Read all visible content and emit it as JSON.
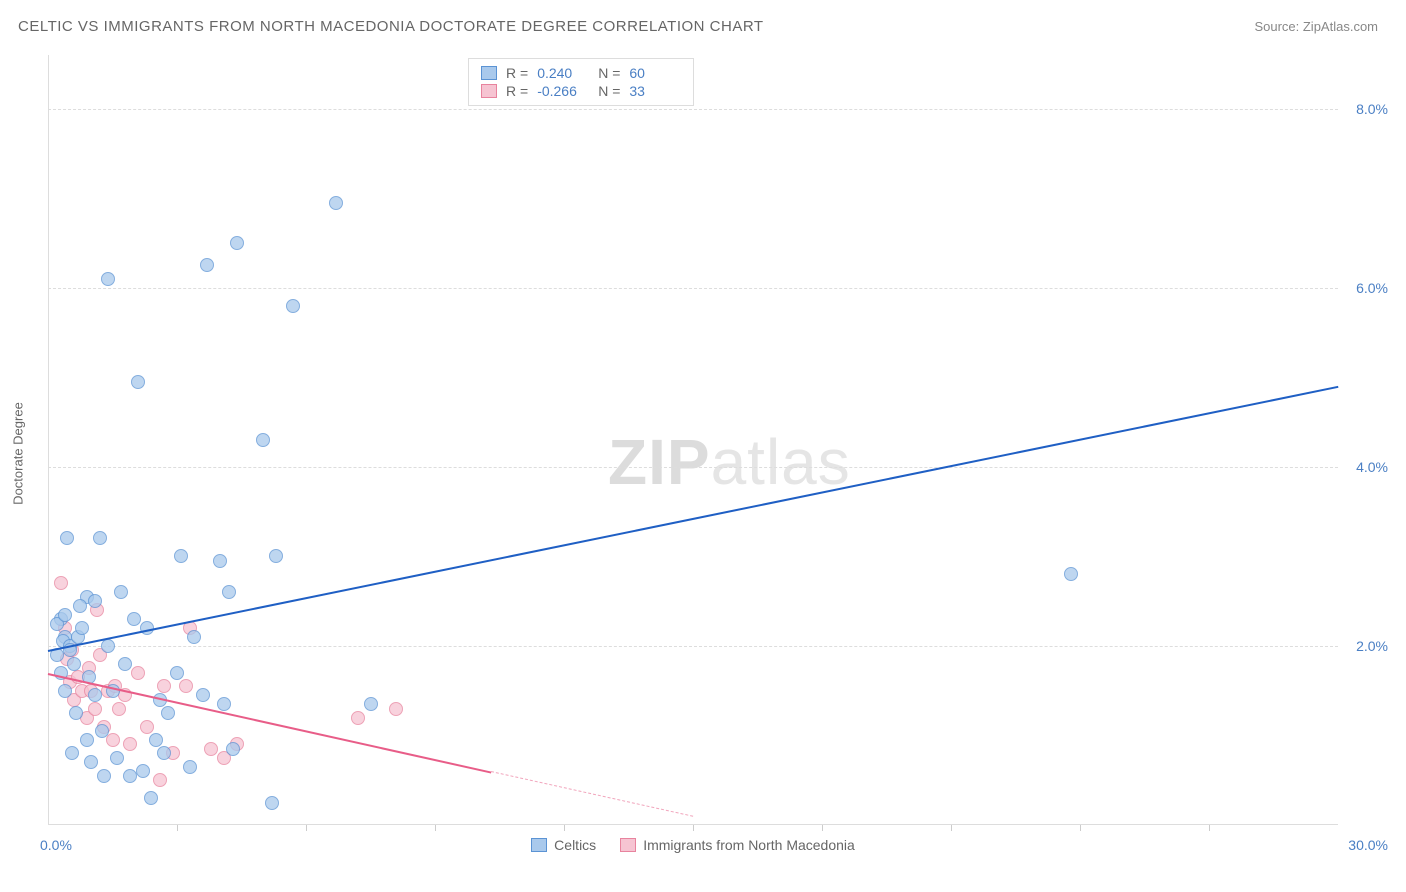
{
  "title": "CELTIC VS IMMIGRANTS FROM NORTH MACEDONIA DOCTORATE DEGREE CORRELATION CHART",
  "source_label": "Source: ZipAtlas.com",
  "y_axis_label": "Doctorate Degree",
  "watermark": {
    "zip": "ZIP",
    "atlas": "atlas"
  },
  "chart": {
    "type": "scatter",
    "xlim": [
      0,
      30
    ],
    "ylim": [
      0,
      8.6
    ],
    "x_min_label": "0.0%",
    "x_max_label": "30.0%",
    "y_ticks": [
      {
        "v": 2.0,
        "label": "2.0%"
      },
      {
        "v": 4.0,
        "label": "4.0%"
      },
      {
        "v": 6.0,
        "label": "6.0%"
      },
      {
        "v": 8.0,
        "label": "8.0%"
      }
    ],
    "x_tick_positions": [
      3,
      6,
      9,
      12,
      15,
      18,
      21,
      24,
      27
    ],
    "grid_color": "#dddddd",
    "background_color": "#ffffff",
    "series": {
      "blue": {
        "label": "Celtics",
        "marker_fill": "#a9c9ec",
        "marker_stroke": "#5b93d4",
        "line_color": "#1f5fc4",
        "R": "0.240",
        "N": "60",
        "trend": {
          "x1": 0,
          "y1": 1.95,
          "x2": 30,
          "y2": 4.9
        },
        "points": [
          [
            0.2,
            1.9
          ],
          [
            0.3,
            2.3
          ],
          [
            0.4,
            2.1
          ],
          [
            0.35,
            2.05
          ],
          [
            0.5,
            2.0
          ],
          [
            0.3,
            1.7
          ],
          [
            0.4,
            1.5
          ],
          [
            0.6,
            1.8
          ],
          [
            0.7,
            2.1
          ],
          [
            0.8,
            2.2
          ],
          [
            0.9,
            2.55
          ],
          [
            0.2,
            2.25
          ],
          [
            0.4,
            2.35
          ],
          [
            0.5,
            1.95
          ],
          [
            1.1,
            2.5
          ],
          [
            1.4,
            2.0
          ],
          [
            1.7,
            2.6
          ],
          [
            2.0,
            2.3
          ],
          [
            2.3,
            2.2
          ],
          [
            2.6,
            1.4
          ],
          [
            1.2,
            3.2
          ],
          [
            1.4,
            6.1
          ],
          [
            2.1,
            4.95
          ],
          [
            2.7,
            0.8
          ],
          [
            3.4,
            2.1
          ],
          [
            3.7,
            6.25
          ],
          [
            4.0,
            2.95
          ],
          [
            4.2,
            2.6
          ],
          [
            4.4,
            6.5
          ],
          [
            5.0,
            4.3
          ],
          [
            5.3,
            3.0
          ],
          [
            5.7,
            5.8
          ],
          [
            6.7,
            6.95
          ],
          [
            3.1,
            3.0
          ],
          [
            3.3,
            0.65
          ],
          [
            4.1,
            1.35
          ],
          [
            5.2,
            0.25
          ],
          [
            1.9,
            0.55
          ],
          [
            2.2,
            0.6
          ],
          [
            2.5,
            0.95
          ],
          [
            2.8,
            1.25
          ],
          [
            0.9,
            0.95
          ],
          [
            1.0,
            0.7
          ],
          [
            1.3,
            0.55
          ],
          [
            1.5,
            1.5
          ],
          [
            1.6,
            0.75
          ],
          [
            1.8,
            1.8
          ],
          [
            3.0,
            1.7
          ],
          [
            1.25,
            1.05
          ],
          [
            0.55,
            0.8
          ],
          [
            0.65,
            1.25
          ],
          [
            3.6,
            1.45
          ],
          [
            1.1,
            1.45
          ],
          [
            4.3,
            0.85
          ],
          [
            0.45,
            3.2
          ],
          [
            0.95,
            1.65
          ],
          [
            2.4,
            0.3
          ],
          [
            7.5,
            1.35
          ],
          [
            23.8,
            2.8
          ],
          [
            0.75,
            2.45
          ]
        ]
      },
      "pink": {
        "label": "Immigrants from North Macedonia",
        "marker_fill": "#f6c4d2",
        "marker_stroke": "#e8839e",
        "line_color": "#e85d88",
        "R": "-0.266",
        "N": "33",
        "trend_solid": {
          "x1": 0,
          "y1": 1.7,
          "x2": 10.3,
          "y2": 0.6
        },
        "trend_dash": {
          "x1": 10.3,
          "y1": 0.6,
          "x2": 15.0,
          "y2": 0.1
        },
        "points": [
          [
            0.3,
            2.7
          ],
          [
            0.4,
            2.2
          ],
          [
            0.45,
            1.85
          ],
          [
            0.5,
            1.6
          ],
          [
            0.55,
            1.95
          ],
          [
            0.6,
            1.4
          ],
          [
            0.7,
            1.65
          ],
          [
            0.8,
            1.5
          ],
          [
            0.9,
            1.2
          ],
          [
            0.95,
            1.75
          ],
          [
            1.0,
            1.5
          ],
          [
            1.1,
            1.3
          ],
          [
            1.2,
            1.9
          ],
          [
            1.3,
            1.1
          ],
          [
            1.4,
            1.5
          ],
          [
            1.5,
            0.95
          ],
          [
            1.55,
            1.55
          ],
          [
            1.65,
            1.3
          ],
          [
            1.8,
            1.45
          ],
          [
            1.9,
            0.9
          ],
          [
            2.1,
            1.7
          ],
          [
            2.3,
            1.1
          ],
          [
            2.6,
            0.5
          ],
          [
            2.7,
            1.55
          ],
          [
            2.9,
            0.8
          ],
          [
            3.2,
            1.55
          ],
          [
            3.3,
            2.2
          ],
          [
            3.8,
            0.85
          ],
          [
            4.1,
            0.75
          ],
          [
            4.4,
            0.9
          ],
          [
            7.2,
            1.2
          ],
          [
            8.1,
            1.3
          ],
          [
            1.15,
            2.4
          ]
        ]
      }
    }
  },
  "stats_labels": {
    "R": "R =",
    "N": "N ="
  },
  "legend_labels": {
    "blue": "Celtics",
    "pink": "Immigrants from North Macedonia"
  }
}
